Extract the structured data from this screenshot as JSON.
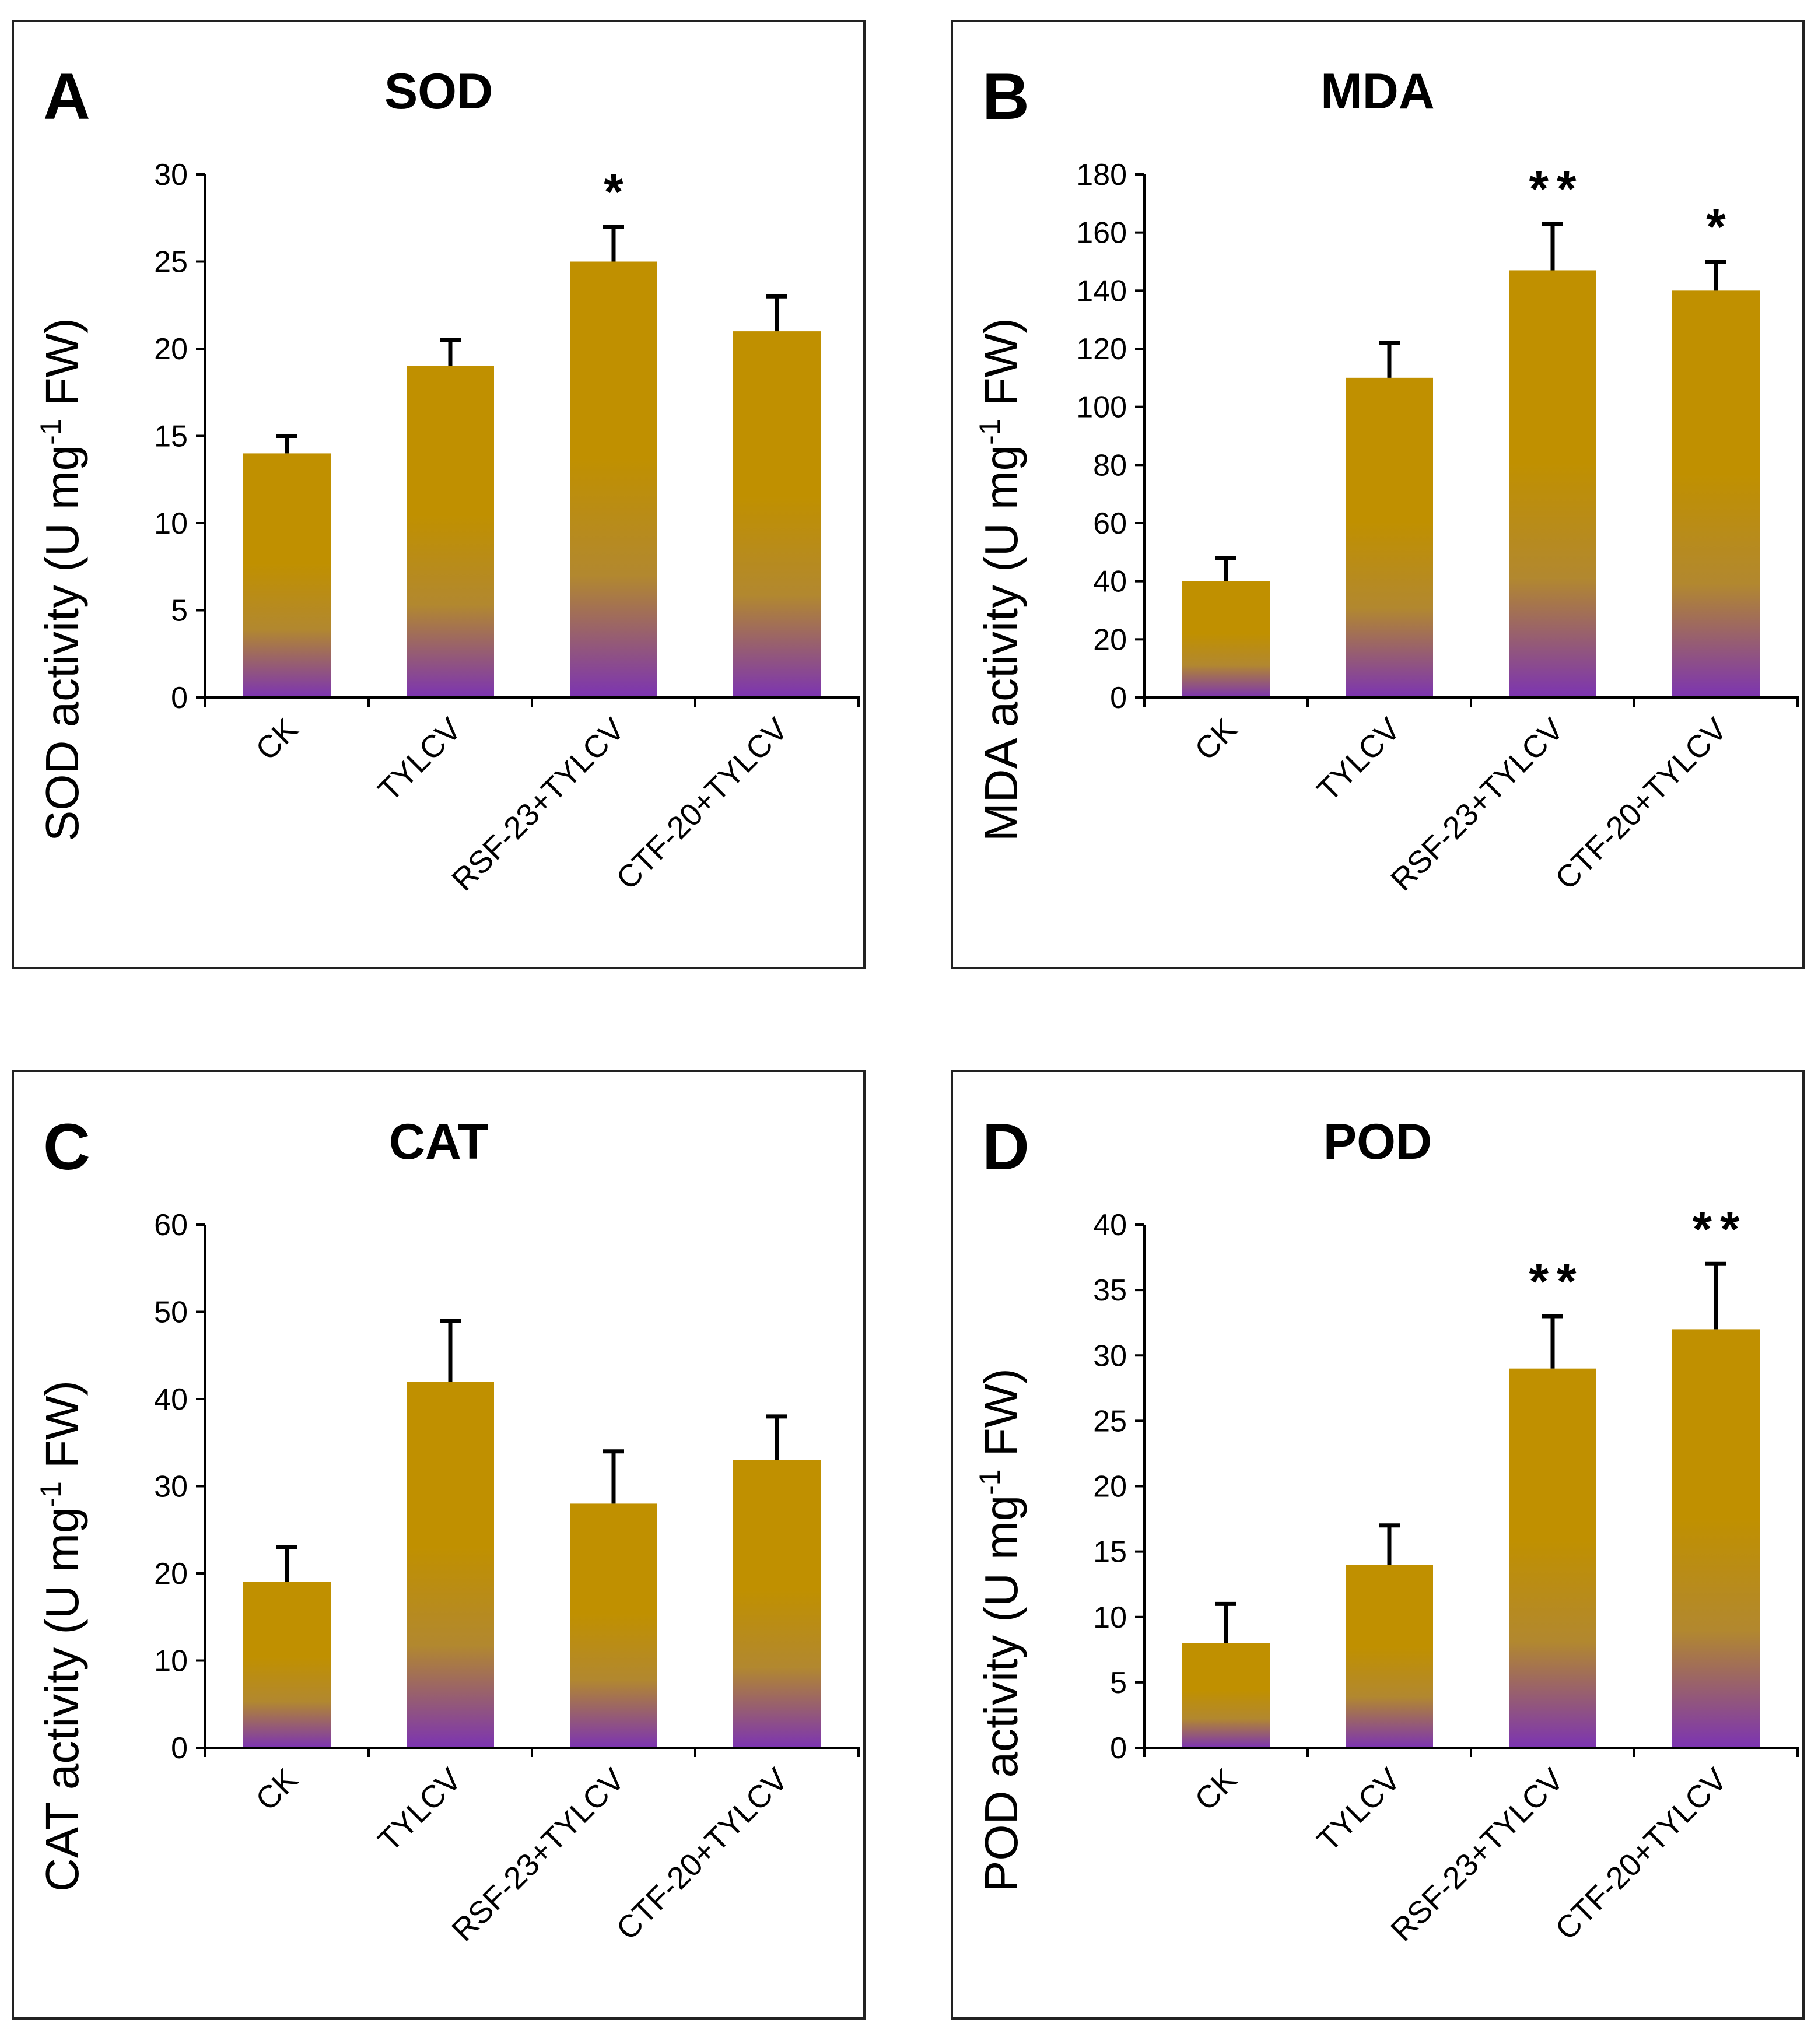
{
  "colors": {
    "bar_top": "#C09000",
    "bar_mid": "#B2882F",
    "bar_bottom": "#7C34B2",
    "axis": "#000000",
    "border": "#222222"
  },
  "chart_data": [
    {
      "type": "bar",
      "panel": "A",
      "title": "SOD",
      "ylabel": "SOD activity (U mg-1 FW)",
      "ylabel_prefix": "SOD activity (U mg",
      "ylabel_sup": "-1",
      "ylabel_suffix": " FW)",
      "xlabel": "",
      "categories": [
        "CK",
        "TYLCV",
        "RSF-23+TYLCV",
        "CTF-20+TYLCV"
      ],
      "values": [
        14,
        19,
        25,
        21
      ],
      "errors": [
        1,
        1.5,
        2,
        2
      ],
      "significance": [
        "",
        "",
        "*",
        ""
      ],
      "ylim": [
        0,
        30
      ],
      "yticks": [
        "0",
        "5",
        "10",
        "15",
        "20",
        "25",
        "30"
      ],
      "grid": false
    },
    {
      "type": "bar",
      "panel": "B",
      "title": "MDA",
      "ylabel": "MDA activity (U mg-1 FW)",
      "ylabel_prefix": "MDA activity (U mg",
      "ylabel_sup": "-1",
      "ylabel_suffix": " FW)",
      "xlabel": "",
      "categories": [
        "CK",
        "TYLCV",
        "RSF-23+TYLCV",
        "CTF-20+TYLCV"
      ],
      "values": [
        40,
        110,
        147,
        140
      ],
      "errors": [
        8,
        12,
        16,
        10
      ],
      "significance": [
        "",
        "",
        "**",
        "*"
      ],
      "ylim": [
        0,
        180
      ],
      "yticks": [
        "0",
        "20",
        "40",
        "60",
        "80",
        "100",
        "120",
        "140",
        "160",
        "180"
      ],
      "grid": false
    },
    {
      "type": "bar",
      "panel": "C",
      "title": "CAT",
      "ylabel": "CAT activity (U mg-1 FW)",
      "ylabel_prefix": "CAT activity (U mg",
      "ylabel_sup": "-1",
      "ylabel_suffix": " FW)",
      "xlabel": "",
      "categories": [
        "CK",
        "TYLCV",
        "RSF-23+TYLCV",
        "CTF-20+TYLCV"
      ],
      "values": [
        19,
        42,
        28,
        33
      ],
      "errors": [
        4,
        7,
        6,
        5
      ],
      "significance": [
        "",
        "",
        "",
        ""
      ],
      "ylim": [
        0,
        60
      ],
      "yticks": [
        "0",
        "10",
        "20",
        "30",
        "40",
        "50",
        "60"
      ],
      "grid": false
    },
    {
      "type": "bar",
      "panel": "D",
      "title": "POD",
      "ylabel": "POD activity (U mg-1 FW)",
      "ylabel_prefix": "POD activity (U mg",
      "ylabel_sup": "-1",
      "ylabel_suffix": " FW)",
      "xlabel": "",
      "categories": [
        "CK",
        "TYLCV",
        "RSF-23+TYLCV",
        "CTF-20+TYLCV"
      ],
      "values": [
        8,
        14,
        29,
        32
      ],
      "errors": [
        3,
        3,
        4,
        5
      ],
      "significance": [
        "",
        "",
        "**",
        "**"
      ],
      "ylim": [
        0,
        40
      ],
      "yticks": [
        "0",
        "5",
        "10",
        "15",
        "20",
        "25",
        "30",
        "35",
        "40"
      ],
      "grid": false
    }
  ]
}
